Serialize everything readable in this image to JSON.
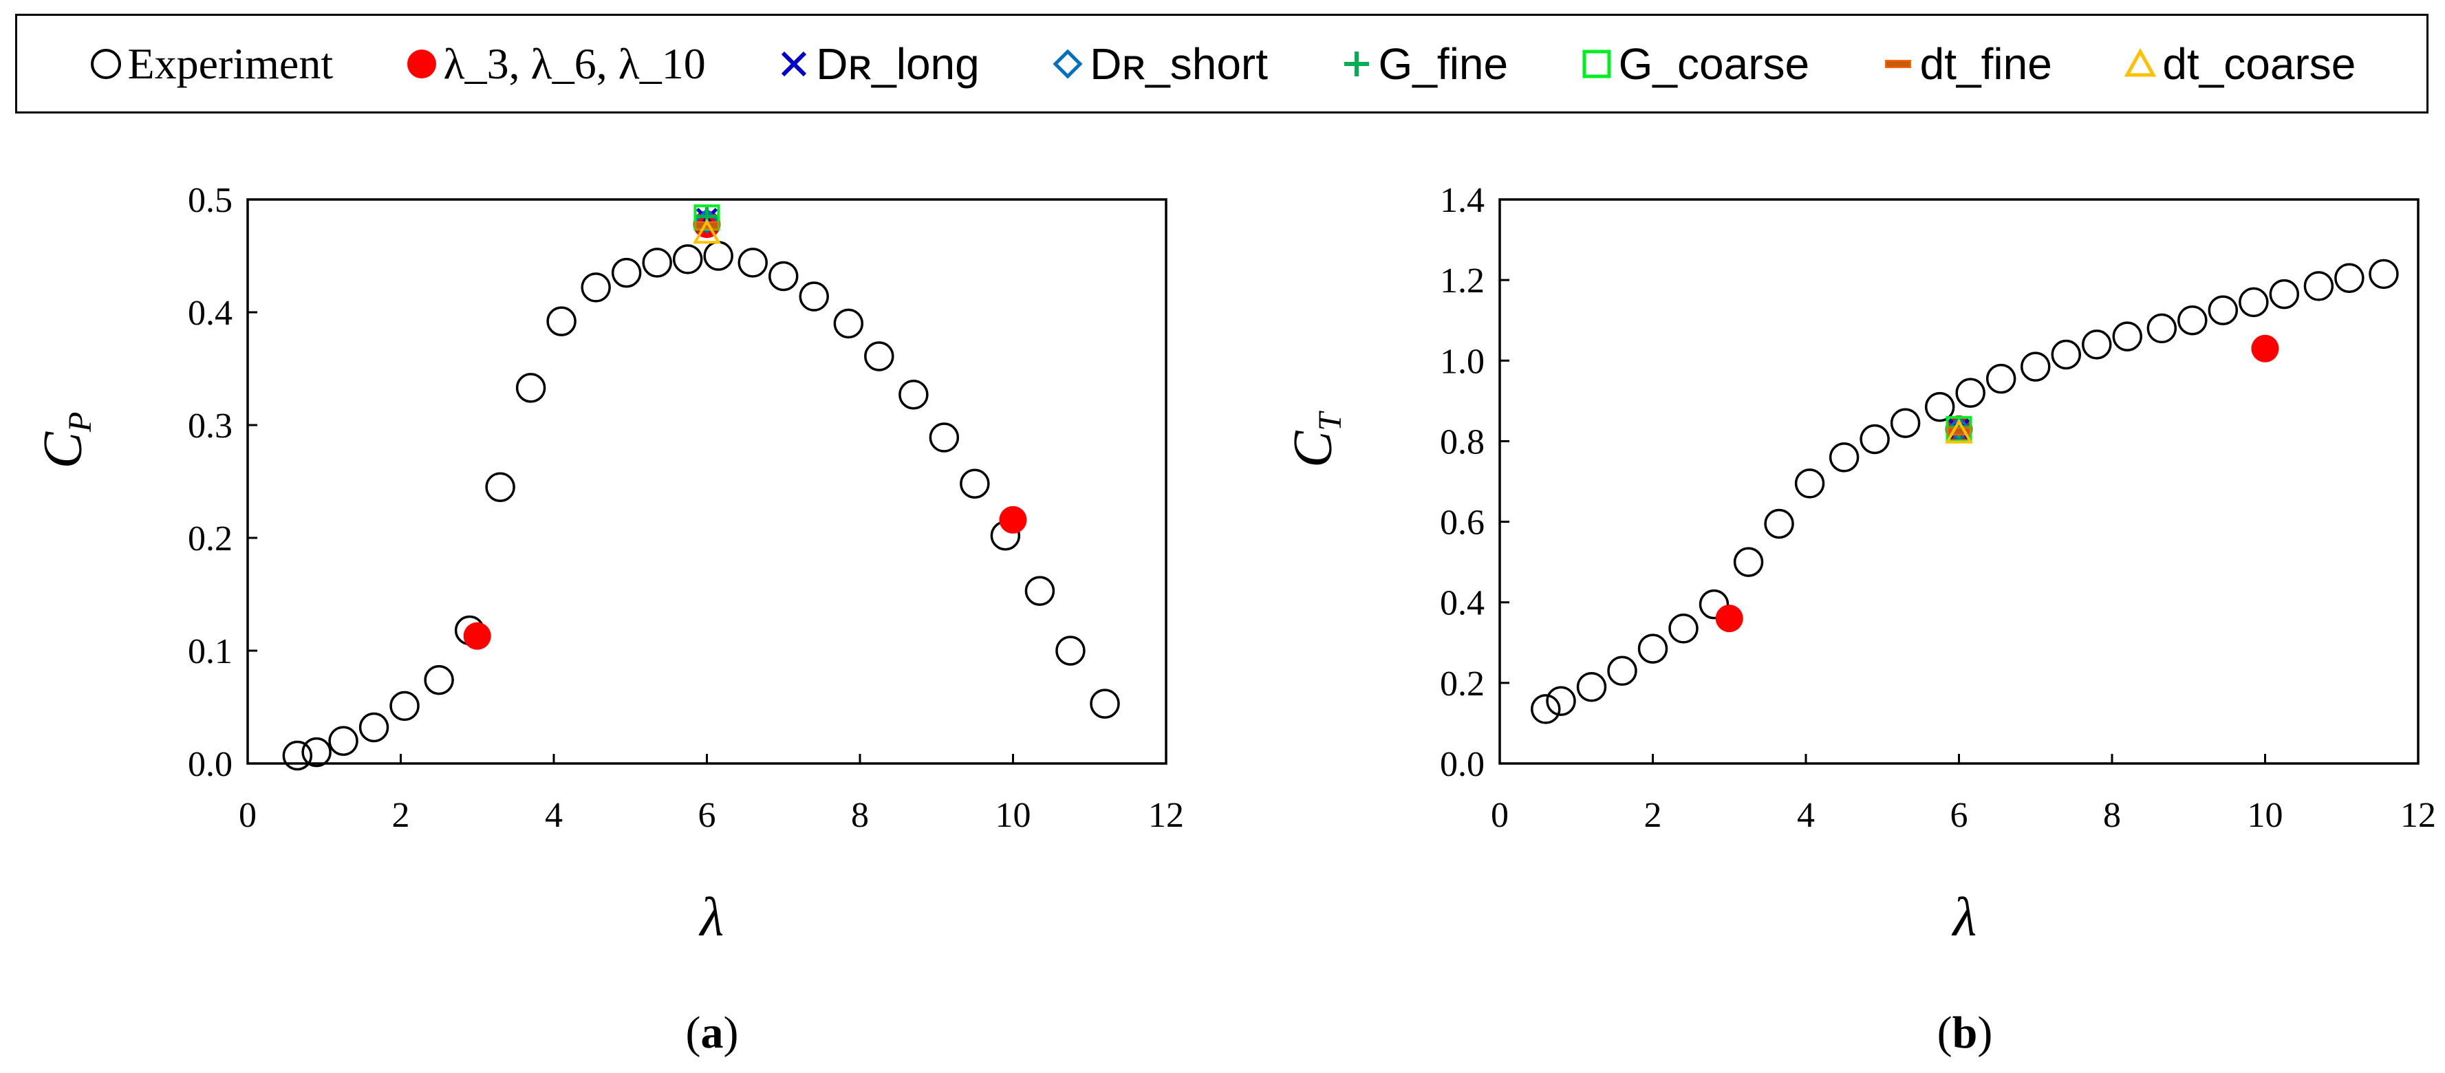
{
  "legend": {
    "experiment": "Experiment",
    "lambda_points": "λ_3, λ_6, λ_10",
    "dr_long": "Dʀ_long",
    "dr_short": "Dʀ_short",
    "g_fine": "G_fine",
    "g_coarse": "G_coarse",
    "dt_fine": "dt_fine",
    "dt_coarse": "dt_coarse"
  },
  "colors": {
    "lambda": "#ff0000",
    "dr_long": "#0000cc",
    "dr_short": "#0070c0",
    "g_fine": "#00b050",
    "g_coarse": "#00ee22",
    "dt_fine": "#c55a11",
    "dt_coarse": "#ffc000"
  },
  "chart_data": [
    {
      "type": "scatter",
      "panel": "(a)",
      "panel_letter": "a",
      "xlabel": "λ",
      "ylabel_main": "C",
      "ylabel_sub": "P",
      "xlim": [
        0,
        12
      ],
      "ylim": [
        0,
        0.5
      ],
      "xticks": [
        0,
        2,
        4,
        6,
        8,
        10,
        12
      ],
      "yticks": [
        0.0,
        0.1,
        0.2,
        0.3,
        0.4,
        0.5
      ],
      "xtick_labels": [
        "0",
        "2",
        "4",
        "6",
        "8",
        "10",
        "12"
      ],
      "ytick_labels": [
        "0.0",
        "0.1",
        "0.2",
        "0.3",
        "0.4",
        "0.5"
      ],
      "series": [
        {
          "name": "Experiment",
          "marker": "open-circle",
          "x": [
            0.65,
            0.9,
            1.25,
            1.65,
            2.05,
            2.5,
            2.9,
            3.3,
            3.7,
            4.1,
            4.55,
            4.95,
            5.35,
            5.75,
            6.15,
            6.6,
            7.0,
            7.4,
            7.85,
            8.25,
            8.7,
            9.1,
            9.5,
            9.9,
            10.35,
            10.75,
            11.2
          ],
          "y": [
            0.007,
            0.01,
            0.02,
            0.032,
            0.051,
            0.074,
            0.118,
            0.245,
            0.333,
            0.392,
            0.422,
            0.435,
            0.444,
            0.447,
            0.45,
            0.444,
            0.432,
            0.414,
            0.39,
            0.361,
            0.327,
            0.289,
            0.248,
            0.202,
            0.153,
            0.1,
            0.053
          ]
        },
        {
          "name": "λ_3, λ_6, λ_10",
          "marker": "filled-circle",
          "x": [
            3.0,
            6.0,
            10.0
          ],
          "y": [
            0.113,
            0.478,
            0.216
          ]
        },
        {
          "name": "D_R_long",
          "marker": "x",
          "x": [
            6.0
          ],
          "y": [
            0.483
          ]
        },
        {
          "name": "D_R_short",
          "marker": "diamond",
          "x": [
            6.0
          ],
          "y": [
            0.481
          ]
        },
        {
          "name": "G_fine",
          "marker": "plus",
          "x": [
            6.0
          ],
          "y": [
            0.485
          ]
        },
        {
          "name": "G_coarse",
          "marker": "square",
          "x": [
            6.0
          ],
          "y": [
            0.484
          ]
        },
        {
          "name": "dt_fine",
          "marker": "dash",
          "x": [
            6.0
          ],
          "y": [
            0.477
          ]
        },
        {
          "name": "dt_coarse",
          "marker": "triangle",
          "x": [
            6.0
          ],
          "y": [
            0.47
          ]
        }
      ]
    },
    {
      "type": "scatter",
      "panel": "(b)",
      "panel_letter": "b",
      "xlabel": "λ",
      "ylabel_main": "C",
      "ylabel_sub": "T",
      "xlim": [
        0,
        12
      ],
      "ylim": [
        0,
        1.4
      ],
      "xticks": [
        0,
        2,
        4,
        6,
        8,
        10,
        12
      ],
      "yticks": [
        0.0,
        0.2,
        0.4,
        0.6,
        0.8,
        1.0,
        1.2,
        1.4
      ],
      "xtick_labels": [
        "0",
        "2",
        "4",
        "6",
        "8",
        "10",
        "12"
      ],
      "ytick_labels": [
        "0.0",
        "0.2",
        "0.4",
        "0.6",
        "0.8",
        "1.0",
        "1.2",
        "1.4"
      ],
      "series": [
        {
          "name": "Experiment",
          "marker": "open-circle",
          "x": [
            0.6,
            0.8,
            1.2,
            1.6,
            2.0,
            2.4,
            2.8,
            3.25,
            3.65,
            4.05,
            4.5,
            4.9,
            5.3,
            5.75,
            6.15,
            6.55,
            7.0,
            7.4,
            7.8,
            8.2,
            8.65,
            9.05,
            9.45,
            9.85,
            10.25,
            10.7,
            11.1,
            11.55
          ],
          "y": [
            0.135,
            0.155,
            0.19,
            0.23,
            0.285,
            0.335,
            0.395,
            0.5,
            0.595,
            0.695,
            0.76,
            0.805,
            0.845,
            0.885,
            0.92,
            0.955,
            0.985,
            1.015,
            1.04,
            1.06,
            1.08,
            1.1,
            1.125,
            1.145,
            1.165,
            1.185,
            1.205,
            1.215
          ]
        },
        {
          "name": "λ_3, λ_6, λ_10",
          "marker": "filled-circle",
          "x": [
            3.0,
            6.0,
            10.0
          ],
          "y": [
            0.36,
            0.83,
            1.03
          ]
        },
        {
          "name": "D_R_long",
          "marker": "x",
          "x": [
            6.0
          ],
          "y": [
            0.83
          ]
        },
        {
          "name": "D_R_short",
          "marker": "diamond",
          "x": [
            6.0
          ],
          "y": [
            0.83
          ]
        },
        {
          "name": "G_fine",
          "marker": "plus",
          "x": [
            6.0
          ],
          "y": [
            0.835
          ]
        },
        {
          "name": "G_coarse",
          "marker": "square",
          "x": [
            6.0
          ],
          "y": [
            0.83
          ]
        },
        {
          "name": "dt_fine",
          "marker": "dash",
          "x": [
            6.0
          ],
          "y": [
            0.825
          ]
        },
        {
          "name": "dt_coarse",
          "marker": "triangle",
          "x": [
            6.0
          ],
          "y": [
            0.82
          ]
        }
      ]
    }
  ]
}
